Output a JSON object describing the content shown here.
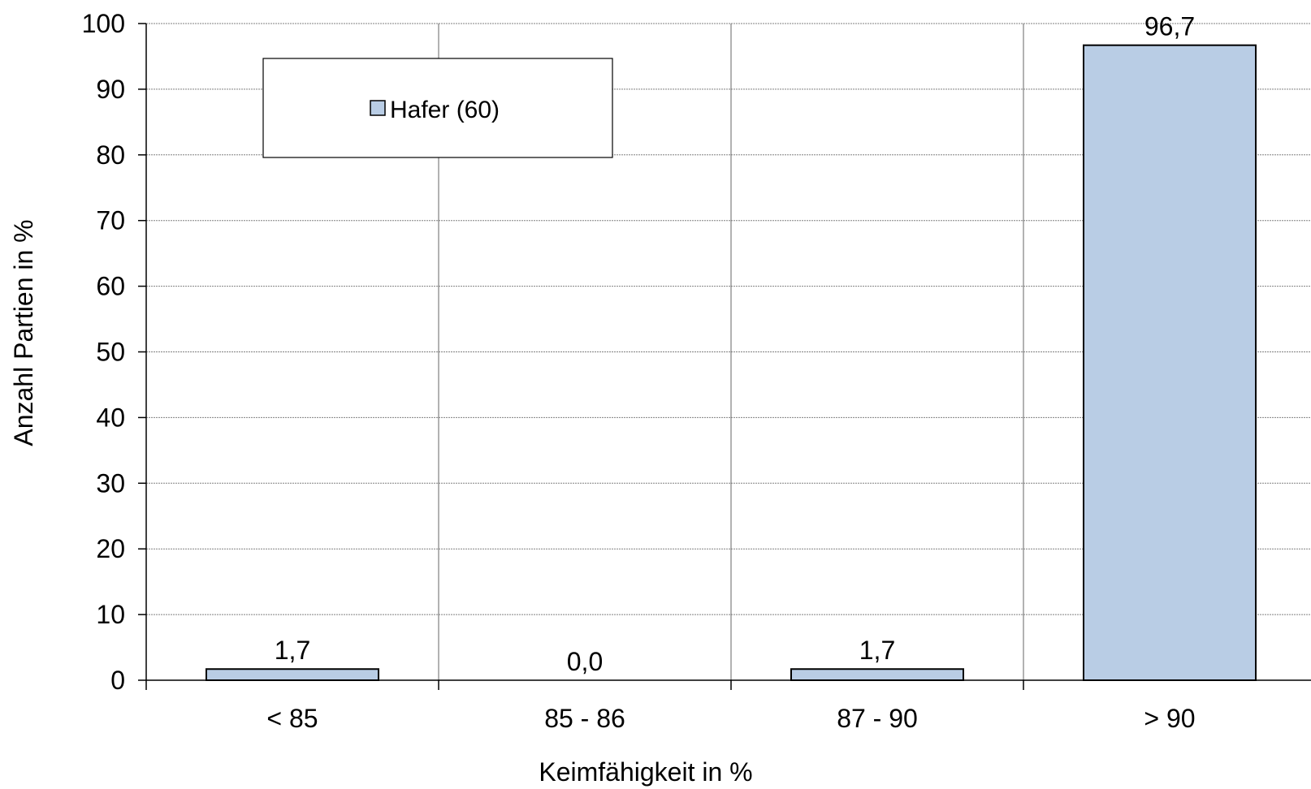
{
  "chart_data": {
    "type": "bar",
    "categories": [
      "< 85",
      "85 - 86",
      "87 - 90",
      "> 90"
    ],
    "series": [
      {
        "name": "Hafer (60)",
        "values": [
          1.7,
          0.0,
          1.7,
          96.7
        ],
        "value_labels": [
          "1,7",
          "0,0",
          "1,7",
          "96,7"
        ]
      }
    ],
    "xlabel": "Keimfähigkeit in %",
    "ylabel": "Anzahl Partien in %",
    "ylim": [
      0,
      100
    ],
    "yticks": [
      0,
      10,
      20,
      30,
      40,
      50,
      60,
      70,
      80,
      90,
      100
    ],
    "ytick_labels": [
      "0",
      "10",
      "20",
      "30",
      "40",
      "50",
      "60",
      "70",
      "80",
      "90",
      "100"
    ],
    "grid": true,
    "legend_position": "top-left",
    "colors": {
      "bar_fill": "#b9cde5",
      "bar_stroke": "#000000",
      "grid": "#808080",
      "axis": "#000000"
    }
  }
}
